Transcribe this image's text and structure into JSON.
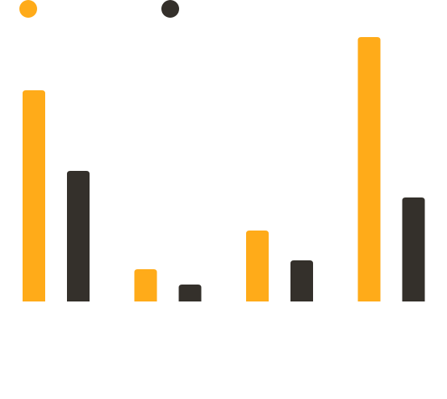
{
  "chart_data": {
    "type": "bar",
    "categories": [
      null,
      null,
      null,
      null
    ],
    "series": [
      {
        "color": "#ffab19",
        "values": [
          262,
          40,
          88,
          328
        ]
      },
      {
        "color": "#34302b",
        "values": [
          162,
          21,
          51,
          129
        ]
      }
    ]
  }
}
